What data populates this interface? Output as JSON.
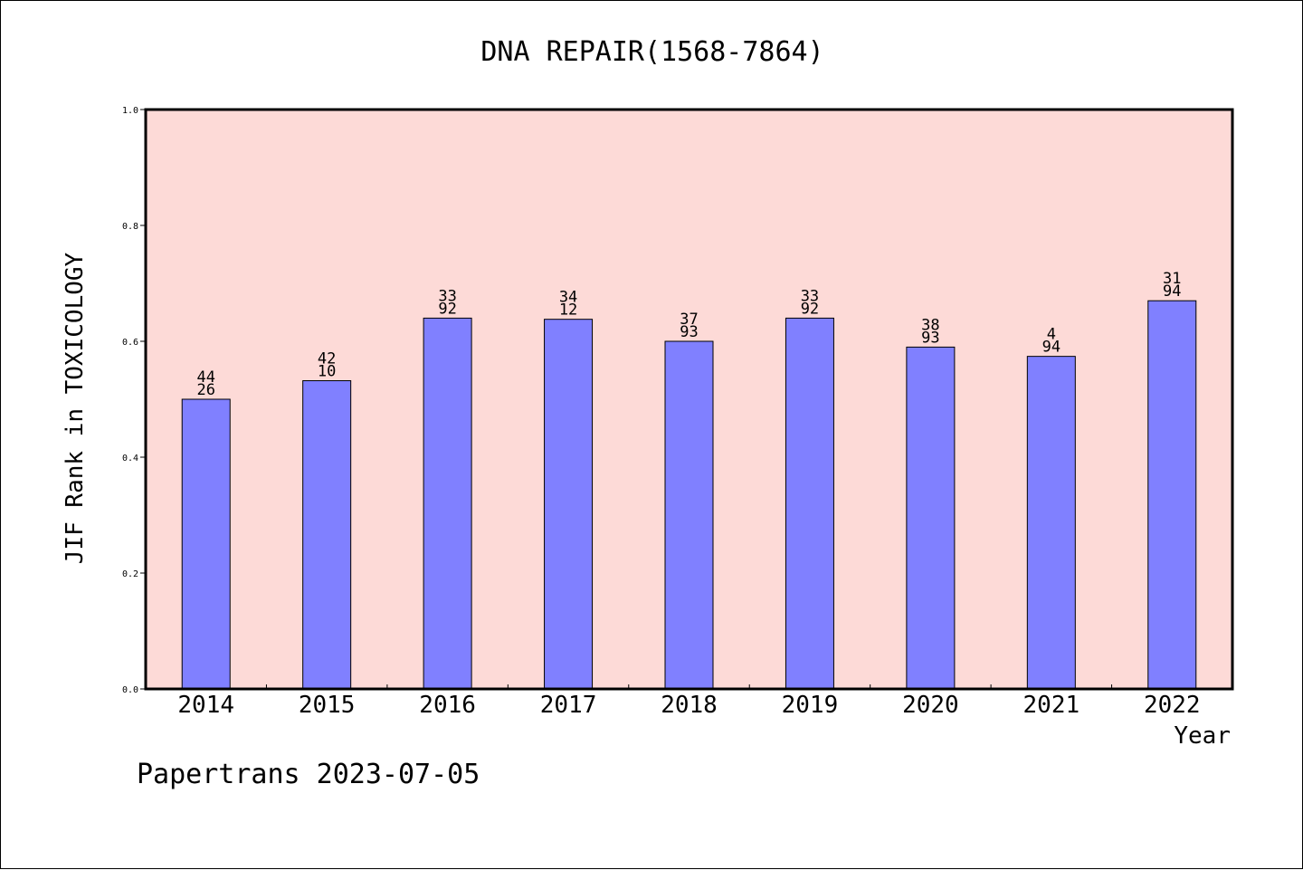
{
  "chart_data": {
    "type": "bar",
    "title": "DNA REPAIR(1568-7864)",
    "xlabel": "Year",
    "ylabel": "JIF Rank in TOXICOLOGY",
    "categories": [
      "2014",
      "2015",
      "2016",
      "2017",
      "2018",
      "2019",
      "2020",
      "2021",
      "2022"
    ],
    "values": [
      0.5,
      0.532,
      0.64,
      0.638,
      0.6,
      0.64,
      0.59,
      0.574,
      0.67
    ],
    "bar_labels": [
      [
        "44",
        "26"
      ],
      [
        "42",
        "10"
      ],
      [
        "33",
        "92"
      ],
      [
        "34",
        "12"
      ],
      [
        "37",
        "93"
      ],
      [
        "33",
        "92"
      ],
      [
        "38",
        "93"
      ],
      [
        "4",
        "94"
      ],
      [
        "31",
        "94"
      ]
    ],
    "yticks": [
      "0.0",
      "0.2",
      "0.4",
      "0.6",
      "0.8",
      "1.0"
    ],
    "ylim": [
      0,
      1.0
    ],
    "grid": false,
    "colors": {
      "bar_fill": "#8080ff",
      "plot_background": "#fddad7",
      "axis": "#000000"
    }
  },
  "footer": {
    "text": "Papertrans 2023-07-05"
  }
}
